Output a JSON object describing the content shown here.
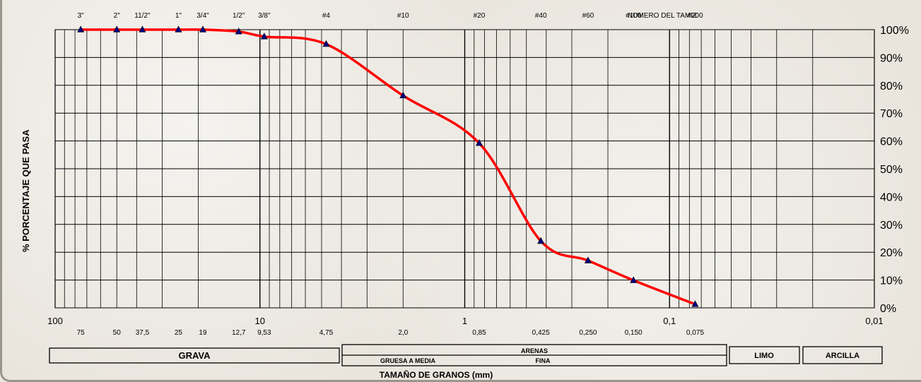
{
  "chart_data": {
    "type": "line",
    "x_scale": "log",
    "x_reversed": true,
    "xlim": [
      100,
      0.01
    ],
    "ylim": [
      0,
      100
    ],
    "grid": true,
    "line_color": "#ff0000",
    "marker_color": "#000080",
    "ylabel": "% PORCENTAJE QUE PASA",
    "xlabel": "TAMAÑO DE GRANOS (mm)",
    "y_tick_labels": [
      "0%",
      "10%",
      "20%",
      "30%",
      "40%",
      "50%",
      "60%",
      "70%",
      "80%",
      "90%",
      "100%"
    ],
    "x_main_ticks": [
      {
        "value": 100,
        "label": "100"
      },
      {
        "value": 10,
        "label": "10"
      },
      {
        "value": 1,
        "label": "1"
      },
      {
        "value": 0.1,
        "label": "0,1"
      },
      {
        "value": 0.01,
        "label": "0,01"
      }
    ],
    "sieve_labels": [
      {
        "value": 75,
        "label": "3\""
      },
      {
        "value": 50,
        "label": "2\""
      },
      {
        "value": 37.5,
        "label": "11/2\""
      },
      {
        "value": 25,
        "label": "1\""
      },
      {
        "value": 19,
        "label": "3/4\""
      },
      {
        "value": 12.7,
        "label": "1/2\""
      },
      {
        "value": 9.53,
        "label": "3/8\""
      },
      {
        "value": 4.75,
        "label": "#4"
      },
      {
        "value": 2.0,
        "label": "#10"
      },
      {
        "value": 0.85,
        "label": "#20"
      },
      {
        "value": 0.425,
        "label": "#40"
      },
      {
        "value": 0.25,
        "label": "#60"
      },
      {
        "value": 0.15,
        "label": "#100"
      },
      {
        "value": 0.075,
        "label": "#200"
      }
    ],
    "sieve_title": "NUMERO DEL TAMIZ",
    "size_labels": [
      {
        "value": 75,
        "label": "75"
      },
      {
        "value": 50,
        "label": "50"
      },
      {
        "value": 37.5,
        "label": "37,5"
      },
      {
        "value": 25,
        "label": "25"
      },
      {
        "value": 19,
        "label": "19"
      },
      {
        "value": 12.7,
        "label": "12,7"
      },
      {
        "value": 9.53,
        "label": "9,53"
      },
      {
        "value": 4.75,
        "label": "4,75"
      },
      {
        "value": 2.0,
        "label": "2,0"
      },
      {
        "value": 0.85,
        "label": "0,85"
      },
      {
        "value": 0.425,
        "label": "0,425"
      },
      {
        "value": 0.25,
        "label": "0,250"
      },
      {
        "value": 0.15,
        "label": "0,150"
      },
      {
        "value": 0.075,
        "label": "0,075"
      }
    ],
    "series": [
      {
        "x": [
          75,
          50,
          37.5,
          25,
          19,
          12.7,
          9.53,
          4.75,
          2.0,
          0.85,
          0.425,
          0.25,
          0.15,
          0.075
        ],
        "y": [
          100,
          100,
          100,
          100,
          100,
          99.3,
          97.5,
          94.8,
          76.3,
          59.2,
          24,
          17,
          9.9,
          1.3
        ]
      }
    ],
    "classification": {
      "grava": "GRAVA",
      "arenas": "ARENAS",
      "gruesa_media": "GRUESA A MEDIA",
      "fina": "FINA",
      "limo": "LIMO",
      "arcilla": "ARCILLA"
    }
  }
}
